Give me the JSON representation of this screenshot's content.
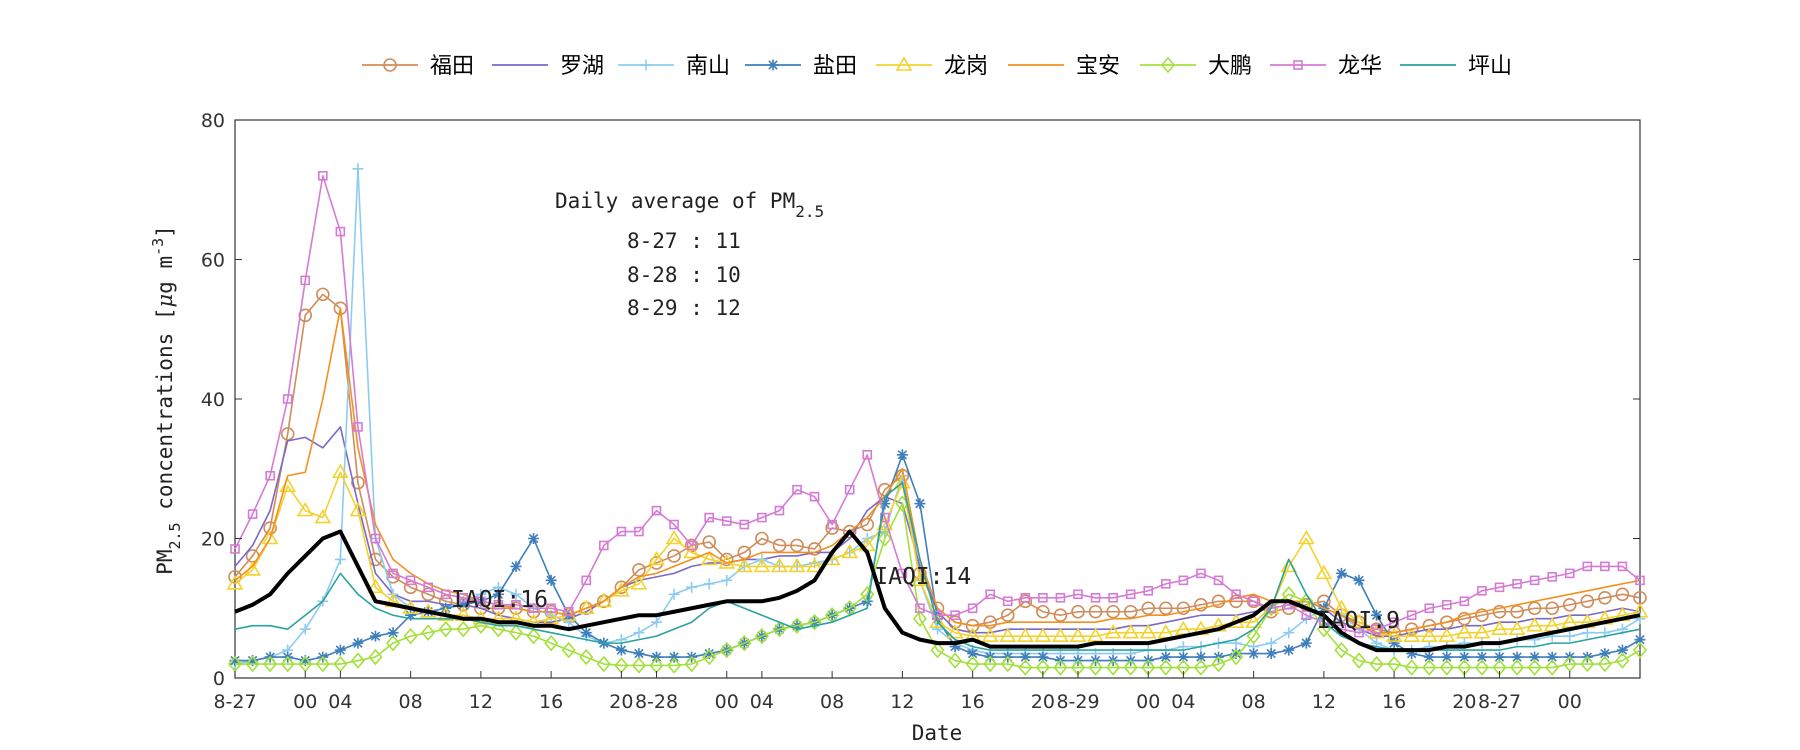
{
  "chart_data": {
    "type": "line",
    "xlabel": "Date",
    "ylabel": "PM2.5 concentrations [μg m-3]",
    "ylabel_parts": {
      "main": "PM",
      "sub": "2.5",
      "rest": " concentrations [",
      "mu": "μ",
      "unit": "g m",
      "sup": "-3",
      "close": "]"
    },
    "ylim": [
      0,
      80
    ],
    "y_ticks": [
      0,
      20,
      40,
      60,
      80
    ],
    "x_range": [
      0,
      80
    ],
    "x_ticks": [
      {
        "x": 0,
        "label": "8-27"
      },
      {
        "x": 4,
        "label": "00"
      },
      {
        "x": 6,
        "label": "04"
      },
      {
        "x": 10,
        "label": "08"
      },
      {
        "x": 14,
        "label": "12"
      },
      {
        "x": 18,
        "label": "16"
      },
      {
        "x": 22,
        "label": "20"
      },
      {
        "x": 24,
        "label": "8-28"
      },
      {
        "x": 28,
        "label": "00"
      },
      {
        "x": 30,
        "label": "04"
      },
      {
        "x": 34,
        "label": "08"
      },
      {
        "x": 38,
        "label": "12"
      },
      {
        "x": 42,
        "label": "16"
      },
      {
        "x": 46,
        "label": "20"
      },
      {
        "x": 48,
        "label": "8-29"
      },
      {
        "x": 52,
        "label": "00"
      },
      {
        "x": 54,
        "label": "04"
      },
      {
        "x": 58,
        "label": "08"
      },
      {
        "x": 62,
        "label": "12"
      },
      {
        "x": 66,
        "label": "16"
      },
      {
        "x": 70,
        "label": "20"
      },
      {
        "x": 72,
        "label": "8-27"
      },
      {
        "x": 76,
        "label": "00"
      }
    ],
    "grid": false,
    "legend_position": "top",
    "annotations": [
      {
        "text": "IAQI:16",
        "x": 12.3,
        "y": 10.2
      },
      {
        "text": "IAQI:14",
        "x": 36.4,
        "y": 13.5
      },
      {
        "text": "IAQI:9",
        "x": 61.6,
        "y": 7.2
      }
    ],
    "daily_average": {
      "title_main": "Daily average of PM",
      "title_sub": "2.5",
      "lines": [
        "8-27 : 11",
        "8-28 : 10",
        "8-29 : 12"
      ]
    },
    "mean_series": {
      "color": "#000000",
      "values": [
        9.5,
        10.5,
        12,
        15,
        17.5,
        20,
        21,
        16,
        11,
        10.5,
        10,
        9.5,
        9,
        8.5,
        8.5,
        8,
        8,
        7.5,
        7.5,
        7,
        7.5,
        8,
        8.5,
        9,
        9,
        9.5,
        10,
        10.5,
        11,
        11,
        11,
        11.5,
        12.5,
        14,
        18,
        21,
        18,
        10,
        6.5,
        5.5,
        5,
        5,
        5.5,
        4.5,
        4.5,
        4.5,
        4.5,
        4.5,
        4.5,
        5,
        5,
        5,
        5,
        5.5,
        6,
        6.5,
        7,
        8,
        9,
        11,
        11,
        10,
        9,
        6.5,
        5,
        4,
        4,
        4,
        4,
        4.5,
        4.5,
        5,
        5,
        5.5,
        6,
        6.5,
        7,
        7.5,
        8,
        8.5,
        9
      ]
    },
    "series": [
      {
        "name": "福田",
        "color": "#d08c5a",
        "marker": "circle",
        "values": [
          14.5,
          17.5,
          21.5,
          35,
          52,
          55,
          53,
          28,
          17,
          14.5,
          13,
          12,
          11,
          10.5,
          10,
          10,
          10,
          9.5,
          9.5,
          9,
          10,
          11,
          13,
          15.5,
          16.5,
          17.5,
          19,
          19.5,
          17,
          18,
          20,
          19,
          19,
          18.5,
          21.5,
          21,
          22,
          27,
          29,
          15,
          10,
          8,
          7.5,
          8,
          9,
          11,
          9.5,
          9,
          9.5,
          9.5,
          9.5,
          9.5,
          10,
          10,
          10,
          10.5,
          11,
          11,
          11,
          9.5,
          10,
          10.5,
          11,
          9,
          8,
          7,
          6.5,
          7,
          7.5,
          8,
          8.5,
          9,
          9.5,
          9.5,
          10,
          10,
          10.5,
          11,
          11.5,
          12,
          11.5
        ]
      },
      {
        "name": "罗湖",
        "color": "#7b68c8",
        "marker": "none",
        "values": [
          16,
          19,
          24,
          34,
          34.5,
          33,
          36,
          25,
          15,
          12,
          11,
          11,
          10.5,
          10.5,
          10,
          9,
          8.5,
          8,
          8,
          8.5,
          9.5,
          11,
          13,
          14,
          14.5,
          15,
          16,
          16.5,
          16.5,
          17,
          17,
          17.5,
          17.5,
          18,
          18,
          20,
          24,
          26,
          25,
          16,
          9.5,
          7,
          6.5,
          6.5,
          7,
          7,
          7,
          7,
          7,
          7,
          7,
          7.5,
          7.5,
          8,
          8.5,
          9,
          9,
          9,
          9.5,
          10,
          10.5,
          11,
          10,
          8,
          7,
          6,
          6,
          6.5,
          7,
          7,
          7.5,
          7.5,
          8,
          8,
          8.5,
          8.5,
          9,
          9,
          9.5,
          10,
          9.5
        ]
      },
      {
        "name": "南山",
        "color": "#8ecbf1",
        "marker": "plus",
        "values": [
          2,
          2.5,
          3,
          4,
          7,
          11,
          17,
          73,
          20,
          12,
          10,
          9.5,
          10,
          11,
          12,
          13,
          12,
          10,
          9,
          8,
          6,
          5,
          5.5,
          6.5,
          8,
          12,
          13,
          13.5,
          14,
          16,
          17,
          16,
          16,
          16.5,
          17,
          18,
          20,
          21,
          29,
          14,
          7,
          5,
          4,
          3.5,
          3.5,
          3.5,
          3.5,
          3.5,
          3.5,
          3.5,
          3.5,
          3.5,
          4,
          4,
          4.5,
          4.5,
          5,
          5,
          4.5,
          5,
          6.5,
          8.5,
          10,
          9,
          7,
          5,
          4,
          4,
          4.5,
          4.5,
          5,
          5,
          5,
          5.5,
          5.5,
          6,
          6,
          6.5,
          6.5,
          7,
          8.5
        ]
      },
      {
        "name": "盐田",
        "color": "#3f7fbb",
        "marker": "asterisk",
        "values": [
          2.5,
          2.5,
          3,
          3,
          2.5,
          3,
          4,
          5,
          6,
          6.5,
          9,
          9.5,
          10,
          10.5,
          11,
          12,
          16,
          20,
          14,
          9,
          6.5,
          5,
          4,
          3.5,
          3,
          3,
          3,
          3.5,
          4,
          5,
          6,
          7,
          7.5,
          8,
          9,
          10,
          11,
          25,
          32,
          25,
          8.5,
          4.5,
          3.5,
          3,
          3,
          3,
          3,
          2.5,
          2.5,
          2.5,
          2.5,
          2.5,
          2.5,
          3,
          3,
          3,
          3,
          3.5,
          3.5,
          3.5,
          4,
          5,
          10,
          15,
          14,
          9,
          5,
          3.5,
          3,
          3,
          3,
          3,
          3,
          3,
          3,
          3,
          3,
          3,
          3.5,
          4,
          5.5
        ]
      },
      {
        "name": "龙岗",
        "color": "#f3d22c",
        "marker": "triangle",
        "values": [
          13.5,
          15.5,
          20,
          27.5,
          24,
          23,
          29.5,
          24,
          13,
          11,
          10,
          9.5,
          9,
          9,
          8.5,
          8.5,
          8.5,
          8,
          8.5,
          9,
          10,
          11,
          12.5,
          13.5,
          17,
          20,
          18,
          17,
          16.5,
          16,
          16,
          16,
          16,
          16,
          17,
          18,
          19,
          22,
          28,
          14,
          8,
          6.5,
          6,
          6,
          6,
          6,
          6,
          6,
          6,
          6,
          6.5,
          6.5,
          6.5,
          6.5,
          7,
          7,
          7.5,
          8,
          8,
          10,
          16,
          20,
          15,
          10,
          8,
          6.5,
          6,
          6,
          6,
          6,
          6.5,
          6.5,
          7,
          7,
          7.5,
          7.5,
          8,
          8,
          8.5,
          9,
          9.5
        ]
      },
      {
        "name": "宝安",
        "color": "#f39020",
        "marker": "none",
        "values": [
          14,
          16,
          20,
          29,
          29.5,
          40,
          53,
          33,
          22,
          17,
          15,
          13.5,
          12.5,
          12,
          11,
          10.5,
          10,
          9.5,
          9.5,
          9,
          10,
          11,
          13,
          14.5,
          15,
          16,
          17,
          18,
          16.5,
          17,
          18,
          18,
          18,
          18,
          19,
          21,
          23,
          26,
          30,
          17,
          10,
          8,
          7.5,
          7.5,
          8,
          8,
          8,
          8,
          8,
          8,
          8.5,
          8.5,
          9,
          9,
          9.5,
          10,
          10.5,
          11.5,
          12,
          11,
          11,
          11,
          10,
          9,
          7.5,
          6.5,
          6.5,
          7,
          7.5,
          8,
          9,
          9.5,
          10,
          10.5,
          11,
          11.5,
          12,
          12.5,
          13,
          13.5,
          14
        ]
      },
      {
        "name": "大鹏",
        "color": "#a4e03b",
        "marker": "diamond",
        "values": [
          2,
          2,
          2,
          2,
          2,
          2,
          2,
          2.5,
          3,
          5,
          6,
          6.5,
          7,
          7,
          7.5,
          7,
          6.5,
          6,
          5,
          4,
          3,
          2,
          1.8,
          1.8,
          1.8,
          1.8,
          2,
          3,
          4,
          5,
          6,
          7,
          7.5,
          8,
          9,
          10,
          12,
          20,
          25,
          8.5,
          4,
          2.5,
          2,
          2,
          2,
          1.5,
          1.5,
          1.5,
          1.5,
          1.5,
          1.5,
          1.5,
          1.5,
          1.5,
          1.5,
          1.5,
          2,
          3,
          6,
          10,
          12,
          11,
          7,
          4,
          2.5,
          2,
          2,
          1.5,
          1.5,
          1.5,
          1.5,
          1.5,
          1.5,
          1.5,
          1.5,
          1.5,
          2,
          2,
          2,
          2.5,
          4
        ]
      },
      {
        "name": "龙华",
        "color": "#d57bd5",
        "marker": "square",
        "values": [
          18.5,
          23.5,
          29,
          40,
          57,
          72,
          64,
          36,
          20,
          15,
          14,
          13,
          12,
          11.5,
          11,
          10.5,
          10.5,
          10,
          10,
          9.5,
          14,
          19,
          21,
          21,
          24,
          22,
          19,
          23,
          22.5,
          22,
          23,
          24,
          27,
          26,
          22,
          27,
          32,
          23,
          15,
          10,
          9,
          9,
          10,
          12,
          11,
          11.5,
          11.5,
          11.5,
          12,
          11.5,
          11.5,
          12,
          12.5,
          13.5,
          14,
          15,
          14,
          12,
          11,
          10,
          10.5,
          9,
          8,
          7,
          6.5,
          7,
          8,
          9,
          10,
          10.5,
          11,
          12.5,
          13,
          13.5,
          14,
          14.5,
          15,
          16,
          16,
          16,
          14
        ]
      },
      {
        "name": "坪山",
        "color": "#2aa3a0",
        "marker": "none",
        "values": [
          7,
          7.5,
          7.5,
          7,
          9,
          11,
          15,
          12,
          10,
          9,
          8.5,
          8.5,
          8.5,
          8.5,
          8,
          7.5,
          7.5,
          7,
          6.5,
          6,
          5.5,
          5,
          5,
          5.5,
          6,
          7,
          8,
          10,
          11,
          10,
          9,
          8,
          7,
          7.5,
          8,
          9,
          10,
          26,
          28,
          17,
          8,
          5.5,
          4.5,
          4,
          4,
          4,
          4,
          4,
          4,
          4,
          4,
          4,
          4,
          4,
          4,
          4.5,
          5,
          5.5,
          7,
          10,
          17,
          12,
          8,
          6,
          5,
          4.5,
          4,
          4,
          4,
          4,
          4,
          4,
          4,
          4.5,
          4.5,
          5,
          5,
          5.5,
          6,
          6.5,
          7
        ]
      }
    ]
  }
}
